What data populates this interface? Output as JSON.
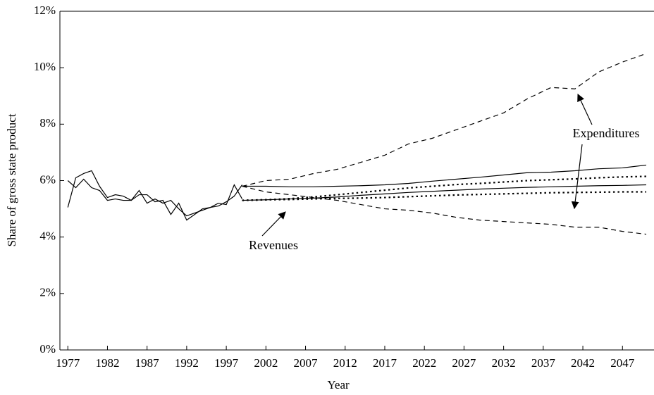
{
  "chart_data": {
    "type": "line",
    "x_label": "Year",
    "y_label": "Share of gross state product",
    "xlim": [
      1976,
      2050
    ],
    "xticks": [
      1977,
      1982,
      1987,
      1992,
      1997,
      2002,
      2007,
      2012,
      2017,
      2022,
      2027,
      2032,
      2037,
      2042,
      2047
    ],
    "ylim": [
      0,
      12
    ],
    "yticks": [
      {
        "value": 0,
        "label": "0%"
      },
      {
        "value": 2,
        "label": "2%"
      },
      {
        "value": 4,
        "label": "4%"
      },
      {
        "value": 6,
        "label": "6%"
      },
      {
        "value": 8,
        "label": "8%"
      },
      {
        "value": 10,
        "label": "10%"
      },
      {
        "value": 12,
        "label": "12%"
      }
    ],
    "annotations": [
      "Expenditures",
      "Revenues"
    ],
    "series": [
      {
        "style": "solid",
        "color": "#000000",
        "x": [
          1977,
          1978,
          1979,
          1980,
          1981,
          1982,
          1983,
          1984,
          1985,
          1986,
          1987,
          1988,
          1989,
          1990,
          1991,
          1992,
          1993,
          1994,
          1995,
          1996,
          1997,
          1998,
          1999
        ],
        "values": [
          5.05,
          6.1,
          6.25,
          6.35,
          5.8,
          5.4,
          5.5,
          5.45,
          5.3,
          5.65,
          5.2,
          5.35,
          5.2,
          5.3,
          5.0,
          4.75,
          4.85,
          4.95,
          5.05,
          5.2,
          5.15,
          5.85,
          5.35
        ]
      },
      {
        "style": "solid",
        "color": "#000000",
        "x": [
          1977,
          1978,
          1979,
          1980,
          1981,
          1982,
          1983,
          1984,
          1985,
          1986,
          1987,
          1988,
          1989,
          1990,
          1991,
          1992,
          1993,
          1994,
          1995,
          1996,
          1997,
          1998,
          1999
        ],
        "values": [
          6.0,
          5.75,
          6.05,
          5.75,
          5.65,
          5.3,
          5.35,
          5.3,
          5.3,
          5.5,
          5.5,
          5.25,
          5.3,
          4.8,
          5.2,
          4.6,
          4.8,
          5.0,
          5.05,
          5.1,
          5.25,
          5.45,
          5.85
        ]
      },
      {
        "style": "dashed",
        "color": "#000000",
        "x": [
          1999,
          2002,
          2005,
          2008,
          2011,
          2014,
          2017,
          2020,
          2023,
          2026,
          2029,
          2032,
          2035,
          2038,
          2041,
          2044,
          2047,
          2050
        ],
        "values": [
          5.8,
          6.0,
          6.05,
          6.25,
          6.4,
          6.65,
          6.9,
          7.3,
          7.5,
          7.8,
          8.1,
          8.4,
          8.9,
          9.3,
          9.25,
          9.85,
          10.2,
          10.5
        ]
      },
      {
        "style": "dashed",
        "color": "#000000",
        "x": [
          1999,
          2002,
          2005,
          2008,
          2011,
          2014,
          2017,
          2020,
          2023,
          2026,
          2029,
          2032,
          2035,
          2038,
          2041,
          2044,
          2047,
          2050
        ],
        "values": [
          5.8,
          5.6,
          5.5,
          5.4,
          5.3,
          5.15,
          5.0,
          4.95,
          4.85,
          4.7,
          4.6,
          4.55,
          4.5,
          4.45,
          4.35,
          4.35,
          4.2,
          4.1
        ]
      },
      {
        "style": "solid",
        "color": "#000000",
        "x": [
          1999,
          2002,
          2005,
          2008,
          2011,
          2014,
          2017,
          2020,
          2023,
          2026,
          2029,
          2032,
          2035,
          2038,
          2041,
          2044,
          2047,
          2050
        ],
        "values": [
          5.8,
          5.8,
          5.78,
          5.78,
          5.8,
          5.82,
          5.85,
          5.9,
          5.98,
          6.05,
          6.12,
          6.2,
          6.28,
          6.3,
          6.35,
          6.42,
          6.45,
          6.55
        ]
      },
      {
        "style": "solid",
        "color": "#000000",
        "x": [
          1999,
          2002,
          2005,
          2008,
          2011,
          2014,
          2017,
          2020,
          2023,
          2026,
          2029,
          2032,
          2035,
          2038,
          2041,
          2044,
          2047,
          2050
        ],
        "values": [
          5.3,
          5.32,
          5.35,
          5.38,
          5.42,
          5.48,
          5.53,
          5.58,
          5.62,
          5.66,
          5.7,
          5.73,
          5.76,
          5.78,
          5.8,
          5.82,
          5.83,
          5.85
        ]
      },
      {
        "style": "dotted",
        "color": "#000000",
        "x": [
          1999,
          2002,
          2005,
          2008,
          2011,
          2014,
          2017,
          2020,
          2023,
          2026,
          2029,
          2032,
          2035,
          2038,
          2041,
          2044,
          2047,
          2050
        ],
        "values": [
          5.3,
          5.32,
          5.36,
          5.42,
          5.5,
          5.58,
          5.66,
          5.74,
          5.8,
          5.86,
          5.9,
          5.95,
          6.0,
          6.03,
          6.06,
          6.1,
          6.13,
          6.15
        ]
      },
      {
        "style": "dotted",
        "color": "#000000",
        "x": [
          1999,
          2002,
          2005,
          2008,
          2011,
          2014,
          2017,
          2020,
          2023,
          2026,
          2029,
          2032,
          2035,
          2038,
          2041,
          2044,
          2047,
          2050
        ],
        "values": [
          5.3,
          5.32,
          5.33,
          5.35,
          5.37,
          5.38,
          5.4,
          5.43,
          5.46,
          5.49,
          5.51,
          5.53,
          5.55,
          5.57,
          5.58,
          5.59,
          5.6,
          5.6
        ]
      }
    ]
  }
}
